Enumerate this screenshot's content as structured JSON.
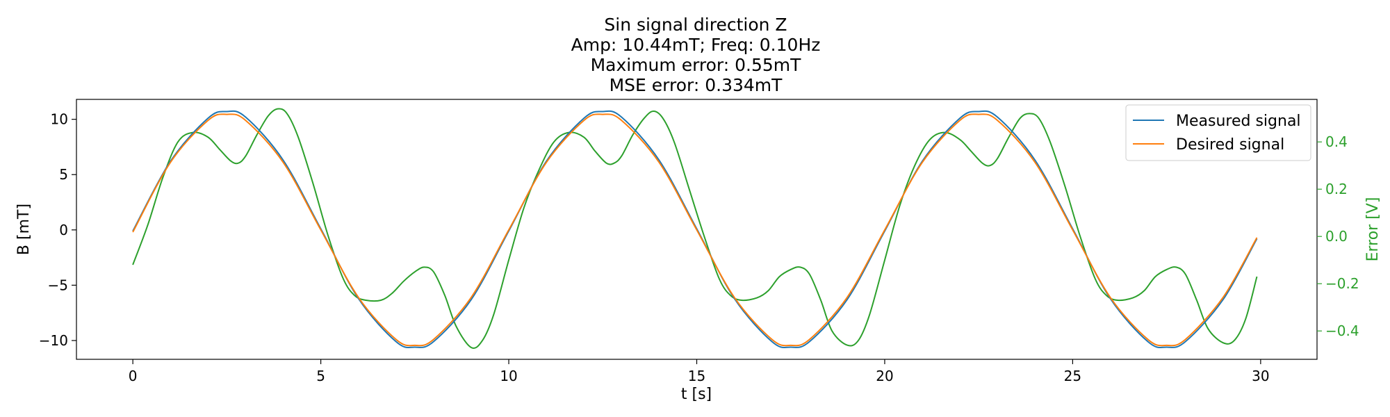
{
  "chart_data": {
    "type": "line",
    "title_lines": [
      "Sin signal direction Z",
      "Amp: 10.44mT; Freq: 0.10Hz",
      "Maximum error: 0.55mT",
      "MSE error: 0.334mT"
    ],
    "xlabel": "t [s]",
    "ylabel": "B [mT]",
    "ylabel_right": "Error [V]",
    "xlim": [
      -1.5,
      31.5
    ],
    "ylim": [
      -11.7,
      11.8
    ],
    "ylim_right": [
      -0.52,
      0.58
    ],
    "x_ticks": [
      0,
      5,
      10,
      15,
      20,
      25,
      30
    ],
    "x_tick_labels": [
      "0",
      "5",
      "10",
      "15",
      "20",
      "25",
      "30"
    ],
    "y_ticks": [
      -10,
      -5,
      0,
      5,
      10
    ],
    "y_tick_labels": [
      "−10",
      "−5",
      "0",
      "5",
      "10"
    ],
    "y_right_ticks": [
      -0.4,
      -0.2,
      0.0,
      0.2,
      0.4
    ],
    "y_right_tick_labels": [
      "−0.4",
      "−0.2",
      "0.0",
      "0.2",
      "0.4"
    ],
    "legend": {
      "placement": "top-right",
      "entries": [
        "Measured signal",
        "Desired signal"
      ]
    },
    "colors": {
      "measured": "#1f77b4",
      "desired": "#ff7f0e",
      "error": "#2ca02c",
      "right_axis": "#2ca02c"
    },
    "series": [
      {
        "name": "Measured signal",
        "axis": "left",
        "x": [
          0,
          1,
          2,
          2.5,
          3,
          4,
          5,
          6,
          7,
          7.5,
          8,
          9,
          10,
          11,
          12,
          12.5,
          13,
          14,
          15,
          16,
          17,
          17.5,
          18,
          19,
          20,
          21,
          22,
          22.5,
          23,
          24,
          25,
          26,
          27,
          27.5,
          28,
          29,
          29.9
        ],
        "values": [
          -0.1,
          6.2,
          10.1,
          10.7,
          10.2,
          6.3,
          0.1,
          -6.2,
          -10.1,
          -10.6,
          -10.1,
          -6.3,
          -0.1,
          6.2,
          10.1,
          10.7,
          10.2,
          6.3,
          0.1,
          -6.2,
          -10.1,
          -10.6,
          -10.1,
          -6.3,
          -0.1,
          6.2,
          10.1,
          10.7,
          10.2,
          6.3,
          0.1,
          -6.2,
          -10.1,
          -10.6,
          -10.1,
          -6.3,
          -0.8
        ]
      },
      {
        "name": "Desired signal",
        "axis": "left",
        "x": [
          0,
          1,
          2,
          2.5,
          3,
          4,
          5,
          6,
          7,
          7.5,
          8,
          9,
          10,
          11,
          12,
          12.5,
          13,
          14,
          15,
          16,
          17,
          17.5,
          18,
          19,
          20,
          21,
          22,
          22.5,
          23,
          24,
          25,
          26,
          27,
          27.5,
          28,
          29,
          29.9
        ],
        "values": [
          -0.2,
          6.1,
          9.9,
          10.44,
          9.9,
          6.1,
          0.0,
          -6.1,
          -9.9,
          -10.44,
          -9.9,
          -6.1,
          0.0,
          6.1,
          9.9,
          10.44,
          9.9,
          6.1,
          0.0,
          -6.1,
          -9.9,
          -10.44,
          -9.9,
          -6.1,
          0.0,
          6.1,
          9.9,
          10.44,
          9.9,
          6.1,
          0.0,
          -6.1,
          -9.9,
          -10.44,
          -9.9,
          -6.1,
          -0.7
        ]
      },
      {
        "name": "Error",
        "axis": "right",
        "x": [
          0,
          0.4,
          0.8,
          1.2,
          1.6,
          2.0,
          2.3,
          2.6,
          2.8,
          3.0,
          3.3,
          3.6,
          3.85,
          4.1,
          4.4,
          4.8,
          5.2,
          5.6,
          5.9,
          6.2,
          6.6,
          6.9,
          7.2,
          7.5,
          7.75,
          8.0,
          8.3,
          8.6,
          9.0,
          9.3,
          9.6,
          10.0,
          10.4,
          10.8,
          11.2,
          11.6,
          12.0,
          12.3,
          12.6,
          12.8,
          13.0,
          13.3,
          13.6,
          13.85,
          14.1,
          14.4,
          14.8,
          15.2,
          15.6,
          15.9,
          16.2,
          16.6,
          16.9,
          17.2,
          17.5,
          17.75,
          18.0,
          18.3,
          18.6,
          19.0,
          19.3,
          19.6,
          20.0,
          20.4,
          20.8,
          21.2,
          21.6,
          22.0,
          22.3,
          22.6,
          22.8,
          23.0,
          23.3,
          23.6,
          23.85,
          24.1,
          24.4,
          24.8,
          25.2,
          25.6,
          25.9,
          26.2,
          26.6,
          26.9,
          27.2,
          27.5,
          27.75,
          28.0,
          28.3,
          28.6,
          29.0,
          29.3,
          29.6,
          29.9
        ],
        "values": [
          -0.12,
          0.05,
          0.25,
          0.4,
          0.44,
          0.42,
          0.37,
          0.32,
          0.31,
          0.34,
          0.43,
          0.51,
          0.54,
          0.52,
          0.42,
          0.22,
          0.0,
          -0.18,
          -0.25,
          -0.27,
          -0.27,
          -0.24,
          -0.19,
          -0.15,
          -0.13,
          -0.15,
          -0.25,
          -0.38,
          -0.47,
          -0.44,
          -0.33,
          -0.1,
          0.12,
          0.28,
          0.4,
          0.44,
          0.42,
          0.36,
          0.31,
          0.31,
          0.34,
          0.43,
          0.5,
          0.53,
          0.5,
          0.4,
          0.2,
          0.0,
          -0.18,
          -0.25,
          -0.27,
          -0.26,
          -0.23,
          -0.17,
          -0.14,
          -0.13,
          -0.16,
          -0.27,
          -0.4,
          -0.46,
          -0.44,
          -0.33,
          -0.1,
          0.13,
          0.3,
          0.41,
          0.44,
          0.41,
          0.36,
          0.31,
          0.3,
          0.33,
          0.42,
          0.5,
          0.52,
          0.5,
          0.4,
          0.21,
          0.0,
          -0.18,
          -0.25,
          -0.27,
          -0.26,
          -0.23,
          -0.17,
          -0.14,
          -0.13,
          -0.16,
          -0.27,
          -0.39,
          -0.45,
          -0.44,
          -0.35,
          -0.17
        ]
      }
    ]
  }
}
